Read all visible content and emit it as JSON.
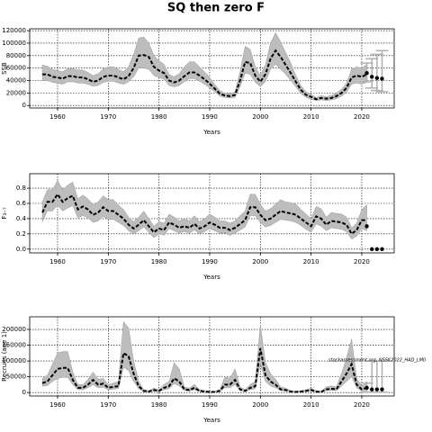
{
  "chart_data": [
    {
      "type": "line",
      "title": "SQ then zero F",
      "xlabel": "Years",
      "ylabel": "SSB",
      "x": [
        1957,
        1958,
        1959,
        1960,
        1961,
        1962,
        1963,
        1964,
        1965,
        1966,
        1967,
        1968,
        1969,
        1970,
        1971,
        1972,
        1973,
        1974,
        1975,
        1976,
        1977,
        1978,
        1979,
        1980,
        1981,
        1982,
        1983,
        1984,
        1985,
        1986,
        1987,
        1988,
        1989,
        1990,
        1991,
        1992,
        1993,
        1994,
        1995,
        1996,
        1997,
        1998,
        1999,
        2000,
        2001,
        2002,
        2003,
        2004,
        2005,
        2006,
        2007,
        2008,
        2009,
        2010,
        2011,
        2012,
        2013,
        2014,
        2015,
        2016,
        2017,
        2018,
        2019,
        2020,
        2021
      ],
      "values": [
        50000,
        50000,
        46000,
        45000,
        43000,
        47000,
        47000,
        45000,
        45000,
        42000,
        38000,
        40000,
        46000,
        48000,
        48000,
        45000,
        42000,
        47000,
        60000,
        80000,
        81000,
        78000,
        62000,
        56000,
        52000,
        40000,
        37000,
        40000,
        47000,
        53000,
        53000,
        48000,
        42000,
        35000,
        27000,
        19000,
        16000,
        15000,
        17000,
        40000,
        70000,
        68000,
        48000,
        38000,
        50000,
        75000,
        88000,
        78000,
        65000,
        52000,
        38000,
        25000,
        17000,
        14000,
        10000,
        12000,
        11000,
        12000,
        15000,
        20000,
        28000,
        45000,
        48000,
        46000,
        50000
      ],
      "lower": [
        40000,
        40000,
        37000,
        36000,
        34000,
        38000,
        38000,
        36000,
        36000,
        34000,
        31000,
        32000,
        37000,
        39000,
        39000,
        36000,
        34000,
        38000,
        46000,
        60000,
        60000,
        58000,
        48000,
        45000,
        42000,
        32000,
        30000,
        32000,
        38000,
        43000,
        43000,
        39000,
        34000,
        28000,
        22000,
        15000,
        13000,
        12000,
        13000,
        30000,
        52000,
        50000,
        37000,
        30000,
        38000,
        58000,
        66000,
        58000,
        50000,
        40000,
        30000,
        19000,
        13000,
        10000,
        8000,
        9000,
        8000,
        9000,
        11000,
        15000,
        21000,
        34000,
        36000,
        34000,
        37000
      ],
      "upper": [
        65000,
        63000,
        58000,
        56000,
        54000,
        59000,
        59000,
        57000,
        57000,
        53000,
        48000,
        51000,
        59000,
        62000,
        62000,
        58000,
        54000,
        62000,
        82000,
        108000,
        110000,
        100000,
        80000,
        72000,
        66000,
        50000,
        46000,
        51000,
        62000,
        70000,
        70000,
        62000,
        54000,
        45000,
        34000,
        24000,
        20000,
        19000,
        22000,
        55000,
        95000,
        90000,
        62000,
        48000,
        65000,
        100000,
        117000,
        102000,
        85000,
        68000,
        48000,
        32000,
        22000,
        18000,
        13000,
        16000,
        14000,
        16000,
        20000,
        26000,
        36000,
        58000,
        62000,
        60000,
        66000
      ],
      "forecast_x": [
        2021,
        2022,
        2023,
        2024
      ],
      "forecast_values": [
        52000,
        46000,
        44000,
        43000
      ],
      "forecast_lower": [
        38000,
        28000,
        24000,
        22000
      ],
      "forecast_upper": [
        68000,
        75000,
        82000,
        88000
      ],
      "color": "#000000",
      "band_color": "#bdbdbd",
      "bar_color": "#b0b0b0",
      "xlim": [
        1954.5,
        2026.4
      ],
      "xticks": [
        1960,
        1970,
        1980,
        1990,
        2000,
        2010,
        2020
      ],
      "ylim": [
        -4000,
        123000
      ],
      "yticks": [
        0,
        20000,
        40000,
        60000,
        80000,
        100000,
        120000
      ],
      "grid": true
    },
    {
      "type": "line",
      "xlabel": "Years",
      "ylabel": "F₃₋₇",
      "x": [
        1957,
        1958,
        1959,
        1960,
        1961,
        1962,
        1963,
        1964,
        1965,
        1966,
        1967,
        1968,
        1969,
        1970,
        1971,
        1972,
        1973,
        1974,
        1975,
        1976,
        1977,
        1978,
        1979,
        1980,
        1981,
        1982,
        1983,
        1984,
        1985,
        1986,
        1987,
        1988,
        1989,
        1990,
        1991,
        1992,
        1993,
        1994,
        1995,
        1996,
        1997,
        1998,
        1999,
        2000,
        2001,
        2002,
        2003,
        2004,
        2005,
        2006,
        2007,
        2008,
        2009,
        2010,
        2011,
        2012,
        2013,
        2014,
        2015,
        2016,
        2017,
        2018,
        2019,
        2020,
        2021
      ],
      "values": [
        0.48,
        0.62,
        0.62,
        0.72,
        0.62,
        0.67,
        0.7,
        0.52,
        0.56,
        0.52,
        0.45,
        0.48,
        0.55,
        0.5,
        0.5,
        0.45,
        0.4,
        0.32,
        0.27,
        0.32,
        0.38,
        0.3,
        0.22,
        0.27,
        0.25,
        0.35,
        0.32,
        0.28,
        0.3,
        0.28,
        0.33,
        0.27,
        0.3,
        0.35,
        0.32,
        0.28,
        0.28,
        0.25,
        0.28,
        0.33,
        0.38,
        0.55,
        0.55,
        0.45,
        0.38,
        0.4,
        0.45,
        0.5,
        0.48,
        0.47,
        0.45,
        0.4,
        0.35,
        0.3,
        0.43,
        0.4,
        0.32,
        0.37,
        0.36,
        0.35,
        0.32,
        0.2,
        0.25,
        0.38,
        0.38
      ],
      "lower": [
        0.36,
        0.5,
        0.5,
        0.58,
        0.5,
        0.54,
        0.57,
        0.41,
        0.44,
        0.41,
        0.35,
        0.37,
        0.43,
        0.39,
        0.39,
        0.35,
        0.31,
        0.24,
        0.2,
        0.24,
        0.29,
        0.22,
        0.15,
        0.2,
        0.18,
        0.27,
        0.24,
        0.21,
        0.23,
        0.21,
        0.25,
        0.2,
        0.23,
        0.27,
        0.24,
        0.21,
        0.21,
        0.18,
        0.21,
        0.25,
        0.29,
        0.44,
        0.44,
        0.35,
        0.29,
        0.31,
        0.35,
        0.39,
        0.38,
        0.37,
        0.35,
        0.31,
        0.26,
        0.22,
        0.33,
        0.3,
        0.24,
        0.28,
        0.27,
        0.26,
        0.23,
        0.13,
        0.17,
        0.27,
        0.24
      ],
      "upper": [
        0.62,
        0.78,
        0.78,
        0.9,
        0.78,
        0.84,
        0.88,
        0.66,
        0.71,
        0.66,
        0.58,
        0.62,
        0.7,
        0.65,
        0.65,
        0.58,
        0.52,
        0.42,
        0.36,
        0.42,
        0.5,
        0.4,
        0.3,
        0.36,
        0.34,
        0.46,
        0.42,
        0.37,
        0.4,
        0.37,
        0.44,
        0.36,
        0.4,
        0.46,
        0.42,
        0.37,
        0.37,
        0.34,
        0.37,
        0.44,
        0.5,
        0.72,
        0.72,
        0.59,
        0.5,
        0.53,
        0.59,
        0.65,
        0.62,
        0.61,
        0.59,
        0.52,
        0.46,
        0.4,
        0.56,
        0.53,
        0.42,
        0.48,
        0.47,
        0.46,
        0.42,
        0.28,
        0.34,
        0.52,
        0.58
      ],
      "forecast_x": [
        2021,
        2022,
        2023,
        2024
      ],
      "forecast_values": [
        0.3,
        0,
        0,
        0
      ],
      "color": "#000000",
      "band_color": "#bdbdbd",
      "bar_color": "#b0b0b0",
      "xlim": [
        1954.5,
        2026.4
      ],
      "xticks": [
        1960,
        1970,
        1980,
        1990,
        2000,
        2010,
        2020
      ],
      "ylim": [
        -0.05,
        0.99
      ],
      "yticks": [
        {
          "value": 0,
          "label": "0.0"
        },
        0.2,
        0.4,
        0.6,
        0.8
      ],
      "grid": true
    },
    {
      "type": "line",
      "xlabel": "Years",
      "ylabel": "Recruits (age 1)",
      "annotation": "stockassessment.org, NSSK2022_HAD_LM0",
      "x": [
        1957,
        1958,
        1959,
        1960,
        1961,
        1962,
        1963,
        1964,
        1965,
        1966,
        1967,
        1968,
        1969,
        1970,
        1971,
        1972,
        1973,
        1974,
        1975,
        1976,
        1977,
        1978,
        1979,
        1980,
        1981,
        1982,
        1983,
        1984,
        1985,
        1986,
        1987,
        1988,
        1989,
        1990,
        1991,
        1992,
        1993,
        1994,
        1995,
        1996,
        1997,
        1998,
        1999,
        2000,
        2001,
        2002,
        2003,
        2004,
        2005,
        2006,
        2007,
        2008,
        2009,
        2010,
        2011,
        2012,
        2013,
        2014,
        2015,
        2016,
        2017,
        2018,
        2019,
        2020,
        2021
      ],
      "values": [
        30000,
        35000,
        55000,
        75000,
        78000,
        78000,
        40000,
        15000,
        15000,
        25000,
        40000,
        25000,
        28000,
        15000,
        18000,
        20000,
        125000,
        115000,
        60000,
        20000,
        5000,
        3000,
        8000,
        5000,
        15000,
        20000,
        45000,
        35000,
        10000,
        8000,
        15000,
        5000,
        3000,
        2000,
        2000,
        5000,
        25000,
        25000,
        40000,
        10000,
        5000,
        15000,
        20000,
        140000,
        55000,
        35000,
        25000,
        10000,
        8000,
        3000,
        2000,
        3000,
        5000,
        8000,
        3000,
        2000,
        10000,
        12000,
        10000,
        35000,
        60000,
        90000,
        25000,
        10000,
        15000
      ],
      "lower": [
        20000,
        22000,
        35000,
        45000,
        48000,
        48000,
        25000,
        9000,
        9000,
        15000,
        25000,
        15000,
        17000,
        9000,
        11000,
        12000,
        80000,
        70000,
        35000,
        12000,
        3000,
        1500,
        4500,
        3000,
        9000,
        12000,
        28000,
        21000,
        6000,
        4500,
        9000,
        3000,
        1500,
        1000,
        1000,
        3000,
        15000,
        15000,
        25000,
        6000,
        3000,
        9000,
        12000,
        90000,
        35000,
        21000,
        15000,
        6000,
        4500,
        1500,
        1000,
        1500,
        3000,
        4500,
        1500,
        1000,
        6000,
        7000,
        6000,
        20000,
        35000,
        50000,
        15000,
        5000,
        6000
      ],
      "upper": [
        45000,
        55000,
        90000,
        125000,
        130000,
        130000,
        65000,
        25000,
        25000,
        42000,
        65000,
        42000,
        45000,
        25000,
        30000,
        35000,
        225000,
        205000,
        100000,
        35000,
        9000,
        6000,
        14000,
        9000,
        26000,
        35000,
        95000,
        75000,
        18000,
        14000,
        26000,
        9000,
        6000,
        4000,
        4000,
        9000,
        50000,
        45000,
        75000,
        18000,
        9000,
        26000,
        35000,
        215000,
        95000,
        60000,
        42000,
        18000,
        14000,
        6000,
        4000,
        6000,
        9000,
        14000,
        6000,
        4000,
        18000,
        21000,
        18000,
        60000,
        110000,
        170000,
        45000,
        20000,
        35000
      ],
      "forecast_x": [
        2021,
        2022,
        2023,
        2024
      ],
      "forecast_values": [
        15000,
        10000,
        10000,
        10000
      ],
      "forecast_lower": [
        1000,
        1000,
        1000,
        1000
      ],
      "forecast_upper": [
        30000,
        100000,
        100000,
        100000
      ],
      "color": "#000000",
      "band_color": "#bdbdbd",
      "bar_color": "#b0b0b0",
      "xlim": [
        1954.5,
        2026.4
      ],
      "xticks": [
        1960,
        1970,
        1980,
        1990,
        2000,
        2010,
        2020
      ],
      "ylim": [
        -11000,
        240000
      ],
      "yticks": [
        0,
        50000,
        100000,
        150000,
        200000
      ],
      "grid": true
    }
  ]
}
